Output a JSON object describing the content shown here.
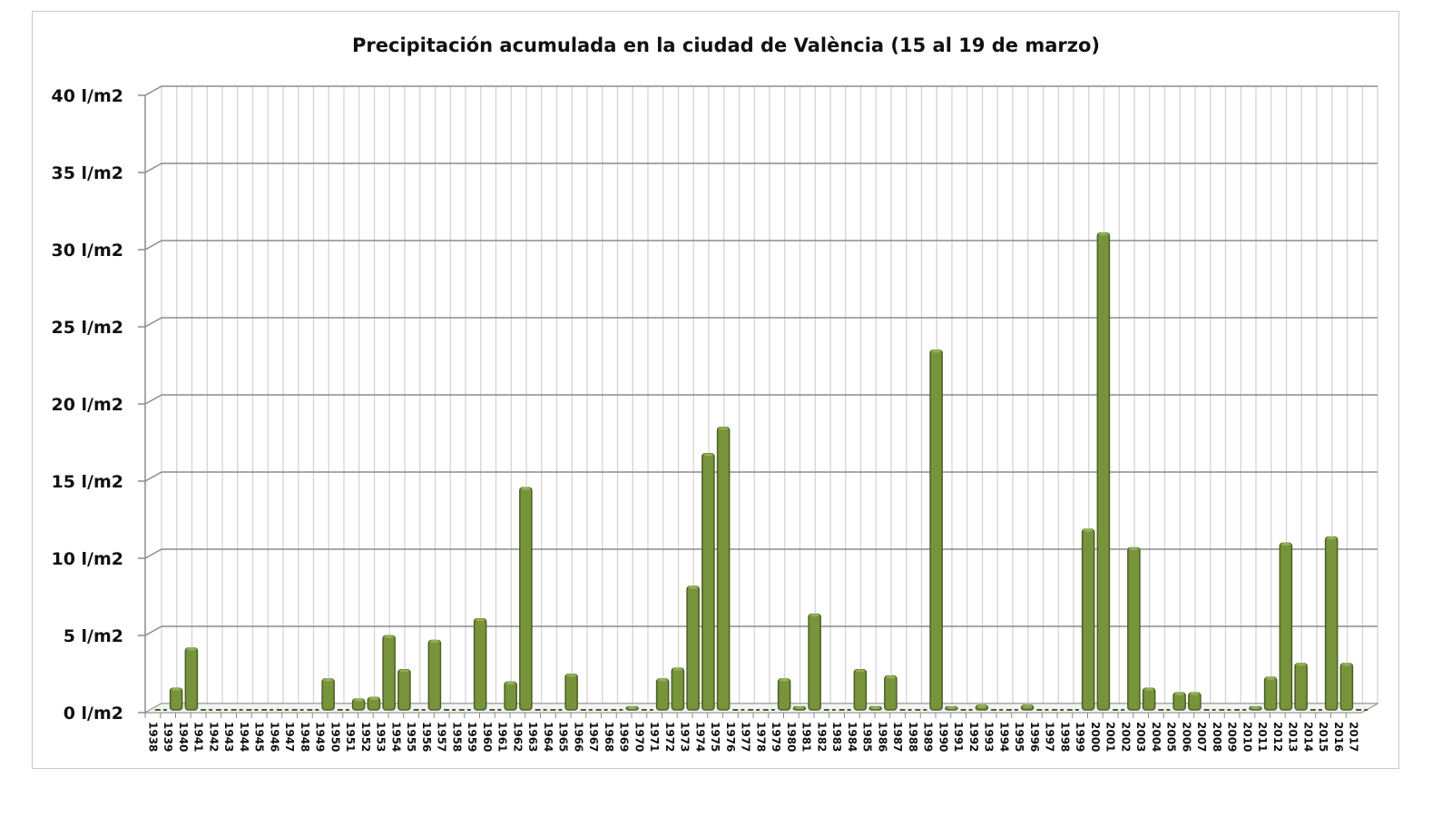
{
  "chart_data": {
    "type": "bar",
    "title": "Precipitación acumulada en la ciudad de València (15 al 19 de marzo)",
    "xlabel": "",
    "ylabel": "",
    "ylim": [
      0,
      40
    ],
    "y_unit_suffix": " l/m2",
    "yticks": [
      "0 l/m2",
      "5 l/m2",
      "10 l/m2",
      "15 l/m2",
      "20 l/m2",
      "25 l/m2",
      "30 l/m2",
      "35 l/m2",
      "40 l/m2"
    ],
    "grid": true,
    "bar_color": "#77933c",
    "bar_edge_color": "#4b5f22",
    "categories": [
      "1938",
      "1939",
      "1940",
      "1941",
      "1942",
      "1943",
      "1944",
      "1945",
      "1946",
      "1947",
      "1948",
      "1949",
      "1950",
      "1951",
      "1952",
      "1953",
      "1954",
      "1955",
      "1956",
      "1957",
      "1958",
      "1959",
      "1960",
      "1961",
      "1962",
      "1963",
      "1964",
      "1965",
      "1966",
      "1967",
      "1968",
      "1969",
      "1970",
      "1971",
      "1972",
      "1973",
      "1974",
      "1975",
      "1976",
      "1977",
      "1978",
      "1979",
      "1980",
      "1981",
      "1982",
      "1983",
      "1984",
      "1985",
      "1986",
      "1987",
      "1988",
      "1989",
      "1990",
      "1991",
      "1992",
      "1993",
      "1994",
      "1995",
      "1996",
      "1997",
      "1998",
      "1999",
      "2000",
      "2001",
      "2002",
      "2003",
      "2004",
      "2005",
      "2006",
      "2007",
      "2008",
      "2009",
      "2010",
      "2011",
      "2012",
      "2013",
      "2014",
      "2015",
      "2016",
      "2017"
    ],
    "values": [
      0,
      1.4,
      4.0,
      0,
      0,
      0,
      0,
      0,
      0,
      0,
      0,
      2.0,
      0,
      0.7,
      0.8,
      4.8,
      2.6,
      0,
      4.5,
      0,
      0,
      5.9,
      0,
      1.8,
      14.4,
      0,
      0,
      2.3,
      0,
      0,
      0,
      0.2,
      0,
      2.0,
      2.7,
      8.0,
      16.6,
      18.3,
      0,
      0,
      0,
      2.0,
      0.2,
      6.2,
      0,
      0,
      2.6,
      0.2,
      2.2,
      0,
      0,
      23.3,
      0.2,
      0,
      0.3,
      0,
      0,
      0.3,
      0,
      0,
      0,
      11.7,
      30.9,
      0,
      10.5,
      1.4,
      0,
      1.1,
      1.1,
      0,
      0,
      0,
      0.2,
      2.1,
      10.8,
      3.0,
      0,
      11.2,
      3.0,
      0
    ]
  }
}
